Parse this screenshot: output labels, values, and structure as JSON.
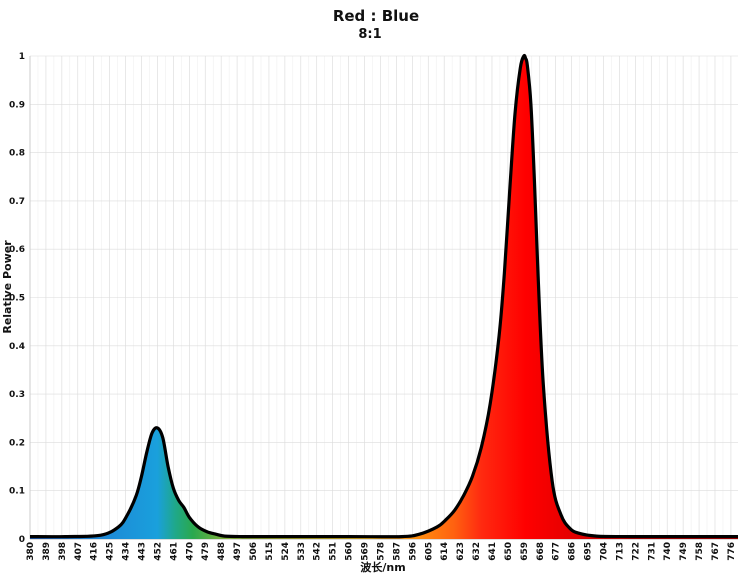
{
  "chart_data": {
    "type": "area",
    "title": "Red : Blue",
    "subtitle": "8:1",
    "xlabel": "波长/nm",
    "ylabel": "Relative Power",
    "xlim": [
      380,
      780
    ],
    "ylim": [
      0,
      1
    ],
    "grid": true,
    "x_ticks": [
      "380",
      "389",
      "398",
      "407",
      "416",
      "425",
      "434",
      "443",
      "452",
      "461",
      "470",
      "479",
      "488",
      "497",
      "506",
      "515",
      "524",
      "533",
      "542",
      "551",
      "560",
      "569",
      "578",
      "587",
      "596",
      "605",
      "614",
      "623",
      "632",
      "641",
      "650",
      "659",
      "668",
      "677",
      "686",
      "695",
      "704",
      "713",
      "722",
      "731",
      "740",
      "749",
      "758",
      "767",
      "776"
    ],
    "y_ticks": [
      "0",
      "0.1",
      "0.2",
      "0.3",
      "0.4",
      "0.5",
      "0.6",
      "0.7",
      "0.8",
      "0.9",
      "1"
    ],
    "series": [
      {
        "x": [
          380,
          400,
          420,
          430,
          435,
          440,
          443,
          446,
          449,
          452,
          455,
          458,
          461,
          464,
          467,
          470,
          475,
          480,
          485,
          490,
          500,
          520,
          560,
          590,
          600,
          610,
          615,
          620,
          625,
          630,
          635,
          640,
          645,
          648,
          651,
          654,
          657,
          659,
          660,
          661,
          663,
          665,
          667,
          670,
          675,
          680,
          685,
          690,
          700,
          720,
          760,
          780
        ],
        "y": [
          0.005,
          0.005,
          0.008,
          0.025,
          0.05,
          0.09,
          0.13,
          0.18,
          0.22,
          0.23,
          0.21,
          0.15,
          0.105,
          0.08,
          0.065,
          0.045,
          0.025,
          0.015,
          0.01,
          0.006,
          0.005,
          0.005,
          0.005,
          0.005,
          0.01,
          0.025,
          0.04,
          0.06,
          0.09,
          0.13,
          0.19,
          0.28,
          0.42,
          0.55,
          0.72,
          0.88,
          0.975,
          1.0,
          0.995,
          0.98,
          0.9,
          0.74,
          0.55,
          0.32,
          0.12,
          0.05,
          0.022,
          0.012,
          0.006,
          0.005,
          0.005,
          0.005
        ]
      }
    ]
  }
}
